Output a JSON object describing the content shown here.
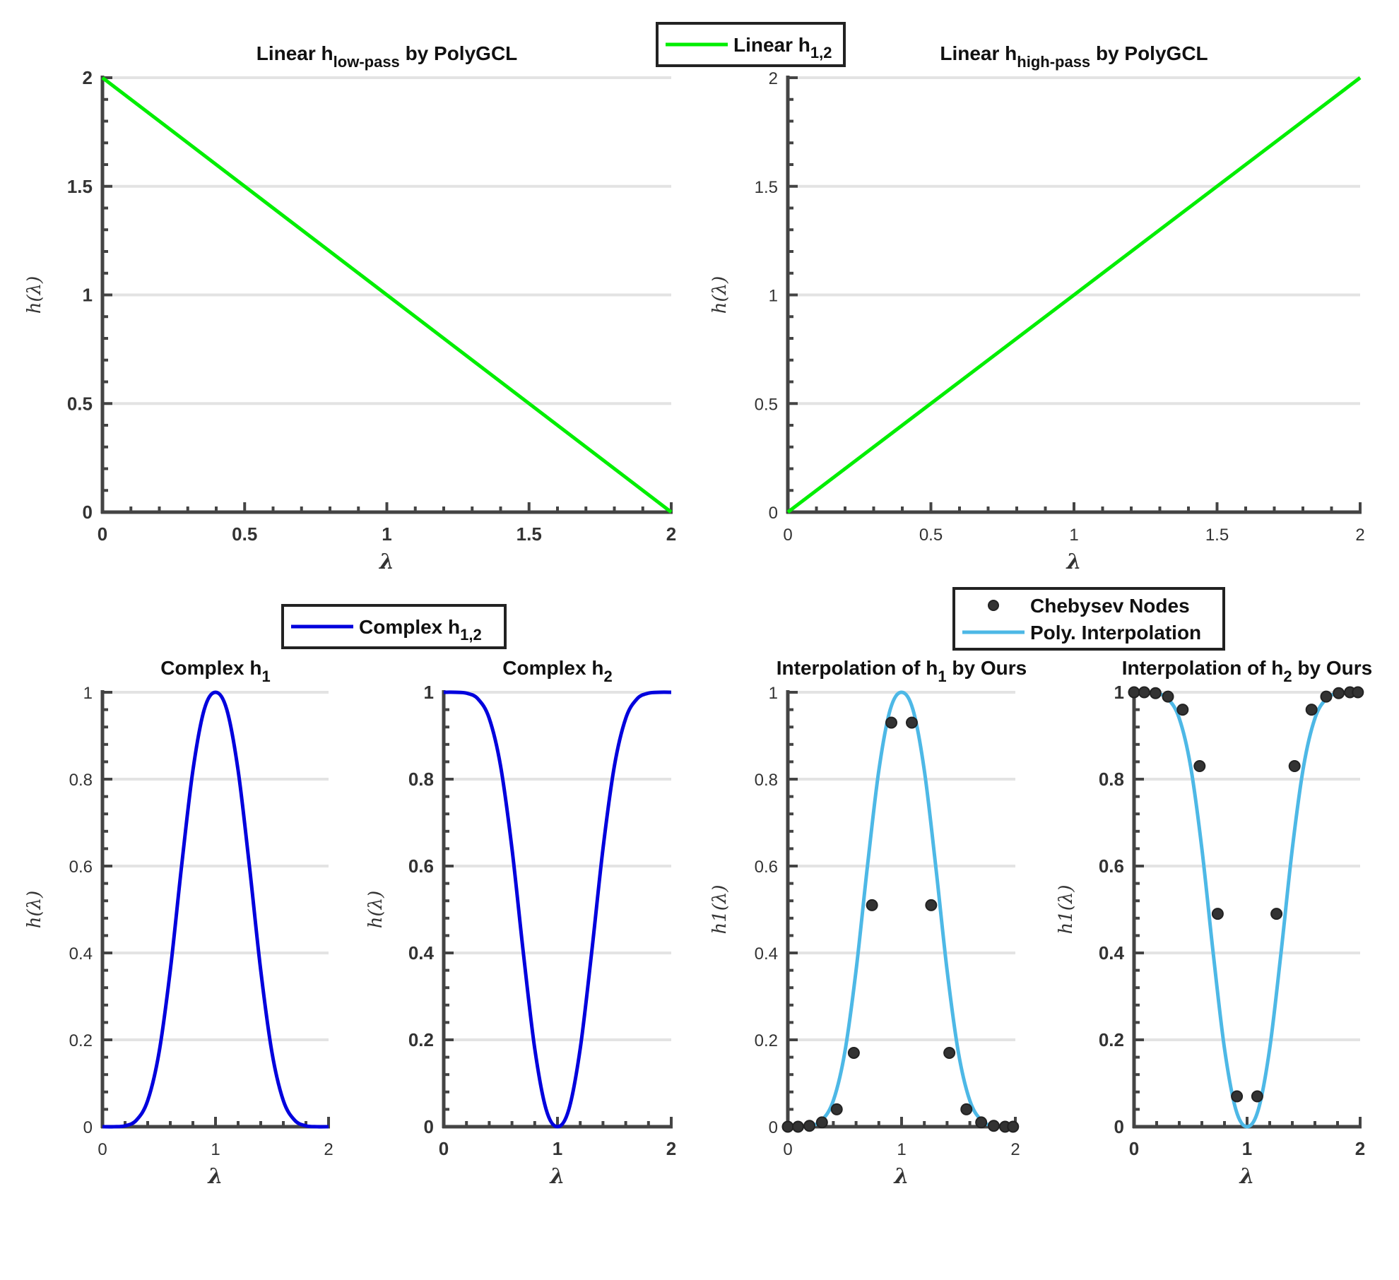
{
  "figure": {
    "legends": [
      {
        "entries": [
          {
            "text": "Linear h",
            "sub": "1,2",
            "marker": "line",
            "color": "#00ee00"
          }
        ]
      },
      {
        "entries": [
          {
            "text": "Complex h",
            "sub": "1,2",
            "marker": "line",
            "color": "#0000dd"
          }
        ]
      },
      {
        "entries": [
          {
            "text": "Chebysev Nodes",
            "sub": "",
            "marker": "dot",
            "color": "#333333"
          },
          {
            "text": "Poly. Interpolation",
            "sub": "",
            "marker": "line",
            "color": "#4db8e6"
          }
        ]
      }
    ]
  },
  "chart_data": [
    {
      "type": "line",
      "title": "Linear h",
      "title_sub": "low-pass",
      "title_suffix": " by PolyGCL",
      "xlabel": "λ",
      "ylabel": "h(λ)",
      "xlim": [
        0,
        2
      ],
      "ylim": [
        0,
        2
      ],
      "xticks": [
        "0",
        "0.5",
        "1",
        "1.5",
        "2"
      ],
      "yticks": [
        "0",
        "0.5",
        "1",
        "1.5",
        "2"
      ],
      "grid": "horizontal",
      "series": [
        {
          "name": "Linear h1,2",
          "color": "#00ee00",
          "x": [
            0,
            2
          ],
          "y": [
            2,
            0
          ]
        }
      ]
    },
    {
      "type": "line",
      "title": "Linear h",
      "title_sub": "high-pass",
      "title_suffix": " by PolyGCL",
      "xlabel": "λ",
      "ylabel": "h(λ)",
      "xlim": [
        0,
        2
      ],
      "ylim": [
        0,
        2
      ],
      "xticks": [
        "0",
        "0.5",
        "1",
        "1.5",
        "2"
      ],
      "yticks": [
        "0",
        "0.5",
        "1",
        "1.5",
        "2"
      ],
      "grid": "horizontal",
      "series": [
        {
          "name": "Linear h1,2",
          "color": "#00ee00",
          "x": [
            0,
            2
          ],
          "y": [
            0,
            2
          ]
        }
      ]
    },
    {
      "type": "line",
      "title": "Complex h",
      "title_sub": "1",
      "title_suffix": "",
      "xlabel": "λ",
      "ylabel": "h(λ)",
      "xlim": [
        0,
        2
      ],
      "ylim": [
        0,
        1
      ],
      "xticks": [
        "0",
        "1",
        "2"
      ],
      "yticks": [
        "0",
        "0.2",
        "0.4",
        "0.6",
        "0.8",
        "1"
      ],
      "grid": "horizontal",
      "series": [
        {
          "name": "Complex h1,2",
          "color": "#0000dd",
          "x": [
            0,
            0.1,
            0.2,
            0.3,
            0.4,
            0.5,
            0.6,
            0.7,
            0.8,
            0.9,
            1.0,
            1.1,
            1.2,
            1.3,
            1.4,
            1.5,
            1.6,
            1.7,
            1.8,
            1.9,
            2.0
          ],
          "y": [
            0.0,
            0.0,
            0.002,
            0.015,
            0.06,
            0.17,
            0.36,
            0.6,
            0.82,
            0.96,
            1.0,
            0.96,
            0.82,
            0.6,
            0.36,
            0.17,
            0.06,
            0.015,
            0.002,
            0.0,
            0.0
          ]
        }
      ]
    },
    {
      "type": "line",
      "title": "Complex h",
      "title_sub": "2",
      "title_suffix": "",
      "xlabel": "λ",
      "ylabel": "h(λ)",
      "xlim": [
        0,
        2
      ],
      "ylim": [
        0,
        1
      ],
      "xticks": [
        "0",
        "1",
        "2"
      ],
      "yticks": [
        "0",
        "0.2",
        "0.4",
        "0.6",
        "0.8",
        "1"
      ],
      "grid": "horizontal",
      "series": [
        {
          "name": "Complex h1,2",
          "color": "#0000dd",
          "x": [
            0,
            0.1,
            0.2,
            0.3,
            0.4,
            0.5,
            0.6,
            0.7,
            0.8,
            0.9,
            1.0,
            1.1,
            1.2,
            1.3,
            1.4,
            1.5,
            1.6,
            1.7,
            1.8,
            1.9,
            2.0
          ],
          "y": [
            1.0,
            1.0,
            0.998,
            0.985,
            0.94,
            0.83,
            0.64,
            0.4,
            0.18,
            0.04,
            0.0,
            0.04,
            0.18,
            0.4,
            0.64,
            0.83,
            0.94,
            0.985,
            0.998,
            1.0,
            1.0
          ]
        }
      ]
    },
    {
      "type": "line",
      "title": "Interpolation of h",
      "title_sub": "1",
      "title_suffix": " by Ours",
      "xlabel": "λ",
      "ylabel": "h1(λ)",
      "xlim": [
        0,
        2
      ],
      "ylim": [
        0,
        1
      ],
      "xticks": [
        "0",
        "1",
        "2"
      ],
      "yticks": [
        "0",
        "0.2",
        "0.4",
        "0.6",
        "0.8",
        "1"
      ],
      "grid": "horizontal",
      "series": [
        {
          "name": "Poly. Interpolation",
          "color": "#4db8e6",
          "x": [
            0,
            0.1,
            0.2,
            0.3,
            0.4,
            0.5,
            0.6,
            0.7,
            0.8,
            0.9,
            1.0,
            1.1,
            1.2,
            1.3,
            1.4,
            1.5,
            1.6,
            1.7,
            1.8,
            1.9,
            2.0
          ],
          "y": [
            0.0,
            0.0,
            0.002,
            0.015,
            0.06,
            0.17,
            0.36,
            0.6,
            0.82,
            0.96,
            1.0,
            0.96,
            0.82,
            0.6,
            0.36,
            0.17,
            0.06,
            0.015,
            0.002,
            0.0,
            0.0
          ]
        },
        {
          "name": "Chebysev Nodes",
          "color": "#333333",
          "marker": "dot",
          "x": [
            0.0,
            0.09,
            0.19,
            0.3,
            0.43,
            0.58,
            0.74,
            0.91,
            1.09,
            1.26,
            1.42,
            1.57,
            1.7,
            1.81,
            1.91,
            1.98
          ],
          "y": [
            0.0,
            0.0,
            0.002,
            0.01,
            0.04,
            0.17,
            0.51,
            0.93,
            0.93,
            0.51,
            0.17,
            0.04,
            0.01,
            0.002,
            0.0,
            0.0
          ]
        }
      ]
    },
    {
      "type": "line",
      "title": "Interpolation of h",
      "title_sub": "2",
      "title_suffix": " by Ours",
      "xlabel": "λ",
      "ylabel": "h1(λ)",
      "xlim": [
        0,
        2
      ],
      "ylim": [
        0,
        1
      ],
      "xticks": [
        "0",
        "1",
        "2"
      ],
      "yticks": [
        "0",
        "0.2",
        "0.4",
        "0.6",
        "0.8",
        "1"
      ],
      "grid": "horizontal",
      "series": [
        {
          "name": "Poly. Interpolation",
          "color": "#4db8e6",
          "x": [
            0,
            0.1,
            0.2,
            0.3,
            0.4,
            0.5,
            0.6,
            0.7,
            0.8,
            0.9,
            1.0,
            1.1,
            1.2,
            1.3,
            1.4,
            1.5,
            1.6,
            1.7,
            1.8,
            1.9,
            2.0
          ],
          "y": [
            1.0,
            1.0,
            0.998,
            0.985,
            0.94,
            0.83,
            0.64,
            0.4,
            0.18,
            0.04,
            0.0,
            0.04,
            0.18,
            0.4,
            0.64,
            0.83,
            0.94,
            0.985,
            0.998,
            1.0,
            1.0
          ]
        },
        {
          "name": "Chebysev Nodes",
          "color": "#333333",
          "marker": "dot",
          "x": [
            0.0,
            0.09,
            0.19,
            0.3,
            0.43,
            0.58,
            0.74,
            0.91,
            1.09,
            1.26,
            1.42,
            1.57,
            1.7,
            1.81,
            1.91,
            1.98
          ],
          "y": [
            1.0,
            1.0,
            0.998,
            0.99,
            0.96,
            0.83,
            0.49,
            0.07,
            0.07,
            0.49,
            0.83,
            0.96,
            0.99,
            0.998,
            1.0,
            1.0
          ]
        }
      ]
    }
  ]
}
